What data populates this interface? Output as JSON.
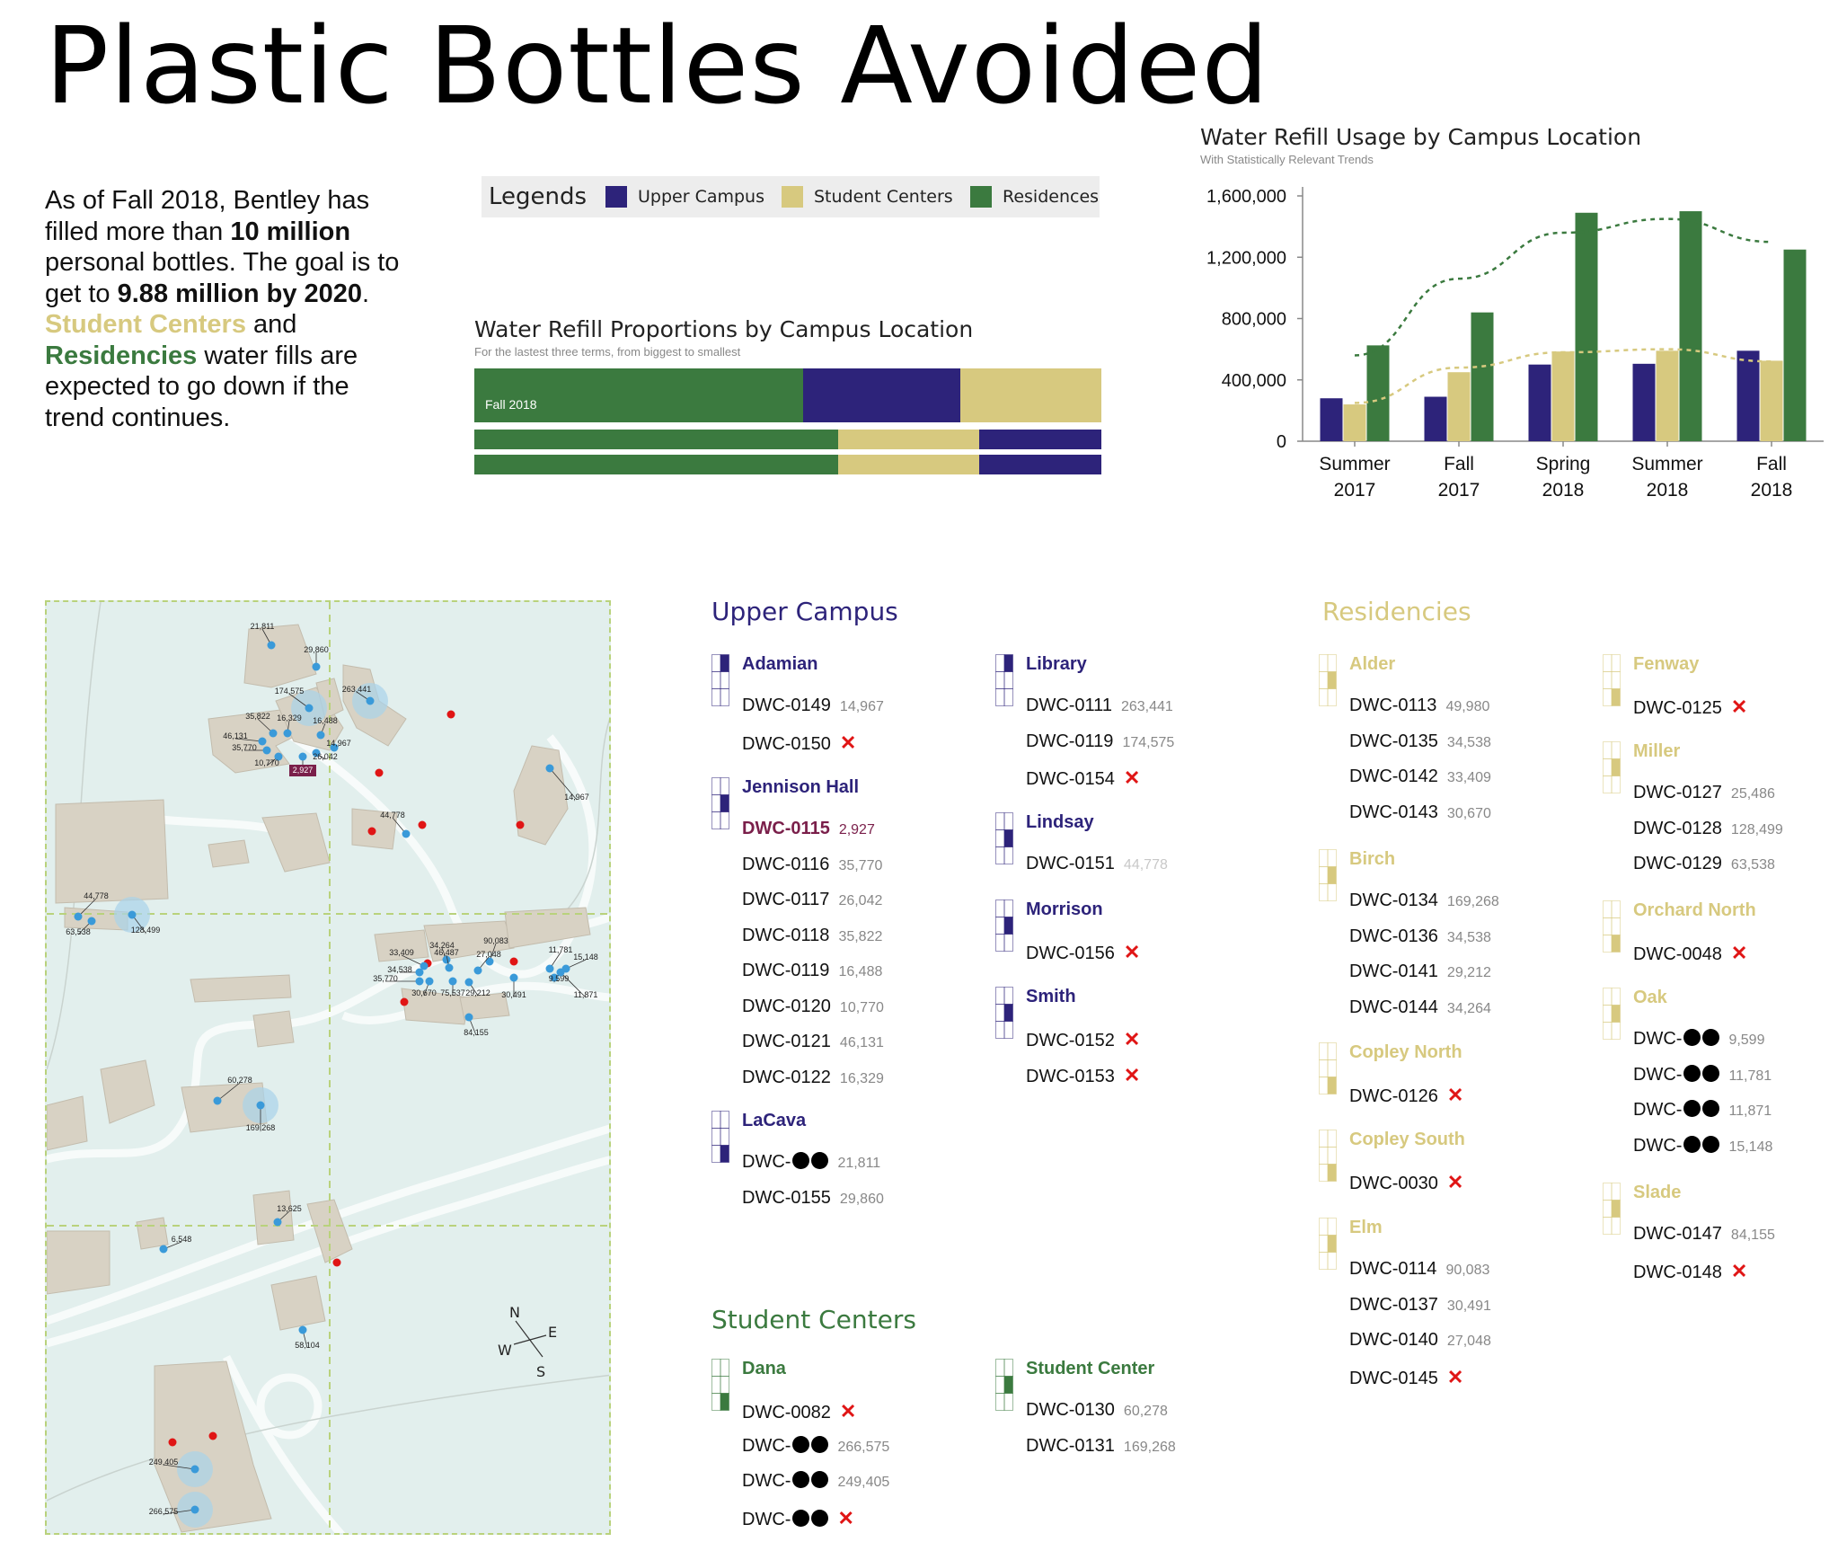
{
  "title": "Plastic Bottles Avoided",
  "intro": {
    "p1a": "As of Fall 2018, Bentley has filled more than ",
    "p1b": "10 million",
    "p1c": " personal bottles. The goal is to get to ",
    "p1d": "9.88 million by 2020",
    "p1e": ".",
    "p2a": "Student Centers",
    "p2b": " and ",
    "p2c": "Residencies",
    "p2d": " water fills are expected to go down if the trend continues."
  },
  "legend": {
    "title": "Legends",
    "items": [
      {
        "label": "Upper Campus",
        "color": "#2d237a"
      },
      {
        "label": "Student Centers",
        "color": "#d7c97f"
      },
      {
        "label": "Residences",
        "color": "#3b7a3f"
      }
    ]
  },
  "colors": {
    "upper": "#2d237a",
    "student": "#d7c97f",
    "residence": "#3b7a3f",
    "red": "#e01515",
    "highlight": "#7a1f4a"
  },
  "chart_data": [
    {
      "type": "bar",
      "title": "Water Refill Proportions by Campus Location",
      "subtitle": "For the lastest three terms, from biggest to smallest",
      "orientation": "horizontal-stacked",
      "rows": [
        {
          "label": "Fall 2018",
          "segments": [
            {
              "series": "Residences",
              "value": 52.5
            },
            {
              "series": "Upper Campus",
              "value": 25.0
            },
            {
              "series": "Student Centers",
              "value": 22.5
            }
          ]
        },
        {
          "label": "",
          "segments": [
            {
              "series": "Residences",
              "value": 58.0
            },
            {
              "series": "Student Centers",
              "value": 22.5
            },
            {
              "series": "Upper Campus",
              "value": 19.5
            }
          ]
        },
        {
          "label": "",
          "segments": [
            {
              "series": "Residences",
              "value": 58.0
            },
            {
              "series": "Student Centers",
              "value": 22.5
            },
            {
              "series": "Upper Campus",
              "value": 19.5
            }
          ]
        }
      ]
    },
    {
      "type": "bar",
      "title": "Water Refill Usage by Campus Location",
      "subtitle": "With Statistically Relevant Trends",
      "categories": [
        [
          "Summer",
          "2017"
        ],
        [
          "Fall",
          "2017"
        ],
        [
          "Spring",
          "2018"
        ],
        [
          "Summer",
          "2018"
        ],
        [
          "Fall",
          "2018"
        ]
      ],
      "series": [
        {
          "name": "Upper Campus",
          "color": "#2d237a",
          "values": [
            280000,
            290000,
            500000,
            505000,
            590000
          ]
        },
        {
          "name": "Student Centers",
          "color": "#d7c97f",
          "values": [
            240000,
            450000,
            585000,
            590000,
            525000
          ]
        },
        {
          "name": "Residences",
          "color": "#3b7a3f",
          "values": [
            625000,
            840000,
            1490000,
            1500000,
            1250000
          ]
        }
      ],
      "trendlines": [
        {
          "series": "Residences",
          "values": [
            560000,
            1060000,
            1360000,
            1450000,
            1300000
          ]
        },
        {
          "series": "Student Centers",
          "values": [
            250000,
            480000,
            580000,
            600000,
            520000
          ]
        }
      ],
      "yticks": [
        "0",
        "400,000",
        "800,000",
        "1,200,000",
        "1,600,000"
      ],
      "ylim": [
        0,
        1600000
      ]
    }
  ],
  "map": {
    "points": [
      {
        "label": "21,811",
        "kind": "value"
      },
      {
        "label": "29,860",
        "kind": "value"
      },
      {
        "label": "174,575",
        "kind": "value"
      },
      {
        "label": "263,441",
        "kind": "value"
      },
      {
        "label": "35,822",
        "kind": "value"
      },
      {
        "label": "16,329",
        "kind": "value"
      },
      {
        "label": "16,488",
        "kind": "value"
      },
      {
        "label": "46,131",
        "kind": "value"
      },
      {
        "label": "14,967",
        "kind": "value"
      },
      {
        "label": "35,770",
        "kind": "value"
      },
      {
        "label": "26,042",
        "kind": "value"
      },
      {
        "label": "10,770",
        "kind": "value"
      },
      {
        "label": "2,927",
        "kind": "highlight"
      },
      {
        "label": "44,778",
        "kind": "value"
      },
      {
        "label": "14,967",
        "kind": "value"
      },
      {
        "label": "44,778",
        "kind": "value"
      },
      {
        "label": "63,538",
        "kind": "value"
      },
      {
        "label": "128,499",
        "kind": "value"
      },
      {
        "label": "90,083",
        "kind": "value"
      },
      {
        "label": "34,264",
        "kind": "value"
      },
      {
        "label": "11,781",
        "kind": "value"
      },
      {
        "label": "33,409",
        "kind": "value"
      },
      {
        "label": "46,487",
        "kind": "value"
      },
      {
        "label": "27,048",
        "kind": "value"
      },
      {
        "label": "15,148",
        "kind": "value"
      },
      {
        "label": "34,538",
        "kind": "value"
      },
      {
        "label": "35,770",
        "kind": "value"
      },
      {
        "label": "9,599",
        "kind": "value"
      },
      {
        "label": "11,871",
        "kind": "value"
      },
      {
        "label": "30,670",
        "kind": "value"
      },
      {
        "label": "75,537",
        "kind": "value"
      },
      {
        "label": "29,212",
        "kind": "value"
      },
      {
        "label": "30,491",
        "kind": "value"
      },
      {
        "label": "84,155",
        "kind": "value"
      },
      {
        "label": "60,278",
        "kind": "value"
      },
      {
        "label": "169,268",
        "kind": "value"
      },
      {
        "label": "13,625",
        "kind": "value"
      },
      {
        "label": "6,548",
        "kind": "value"
      },
      {
        "label": "58,104",
        "kind": "value"
      },
      {
        "label": "249,405",
        "kind": "value"
      },
      {
        "label": "266,575",
        "kind": "value"
      }
    ],
    "compass": {
      "n": "N",
      "e": "E",
      "s": "S",
      "w": "W"
    }
  },
  "upper_campus": {
    "title": "Upper Campus",
    "groups": [
      {
        "name": "Adamian",
        "rows": [
          {
            "id": "DWC-0149",
            "value": "14,967"
          },
          {
            "id": "DWC-0150",
            "status": "x"
          }
        ]
      },
      {
        "name": "Jennison Hall",
        "rows": [
          {
            "id": "DWC-0115",
            "value": "2,927",
            "highlight": true
          },
          {
            "id": "DWC-0116",
            "value": "35,770"
          },
          {
            "id": "DWC-0117",
            "value": "26,042"
          },
          {
            "id": "DWC-0118",
            "value": "35,822"
          },
          {
            "id": "DWC-0119",
            "value": "16,488"
          },
          {
            "id": "DWC-0120",
            "value": "10,770"
          },
          {
            "id": "DWC-0121",
            "value": "46,131"
          },
          {
            "id": "DWC-0122",
            "value": "16,329"
          }
        ]
      },
      {
        "name": "LaCava",
        "rows": [
          {
            "id": "DWC-",
            "redacted": true,
            "value": "21,811"
          },
          {
            "id": "DWC-0155",
            "value": "29,860"
          }
        ]
      },
      {
        "name": "Library",
        "rows": [
          {
            "id": "DWC-0111",
            "value": "263,441"
          },
          {
            "id": "DWC-0119",
            "value": "174,575"
          },
          {
            "id": "DWC-0154",
            "status": "x"
          }
        ]
      },
      {
        "name": "Lindsay",
        "rows": [
          {
            "id": "DWC-0151",
            "value": "44,778",
            "faint": true
          }
        ]
      },
      {
        "name": "Morrison",
        "rows": [
          {
            "id": "DWC-0156",
            "status": "x"
          }
        ]
      },
      {
        "name": "Smith",
        "rows": [
          {
            "id": "DWC-0152",
            "status": "x"
          },
          {
            "id": "DWC-0153",
            "status": "x"
          }
        ]
      }
    ]
  },
  "student_centers": {
    "title": "Student Centers",
    "groups": [
      {
        "name": "Dana",
        "rows": [
          {
            "id": "DWC-0082",
            "status": "x"
          },
          {
            "id": "DWC-",
            "redacted": true,
            "value": "266,575"
          },
          {
            "id": "DWC-",
            "redacted": true,
            "value": "249,405"
          },
          {
            "id": "DWC-",
            "redacted": true,
            "status": "x"
          }
        ]
      },
      {
        "name": "Student Center",
        "rows": [
          {
            "id": "DWC-0130",
            "value": "60,278"
          },
          {
            "id": "DWC-0131",
            "value": "169,268"
          }
        ]
      }
    ]
  },
  "residencies": {
    "title": "Residencies",
    "groups": [
      {
        "name": "Alder",
        "rows": [
          {
            "id": "DWC-0113",
            "value": "49,980"
          },
          {
            "id": "DWC-0135",
            "value": "34,538"
          },
          {
            "id": "DWC-0142",
            "value": "33,409"
          },
          {
            "id": "DWC-0143",
            "value": "30,670"
          }
        ]
      },
      {
        "name": "Birch",
        "rows": [
          {
            "id": "DWC-0134",
            "value": "169,268"
          },
          {
            "id": "DWC-0136",
            "value": "34,538"
          },
          {
            "id": "DWC-0141",
            "value": "29,212"
          },
          {
            "id": "DWC-0144",
            "value": "34,264"
          }
        ]
      },
      {
        "name": "Copley North",
        "rows": [
          {
            "id": "DWC-0126",
            "status": "x"
          }
        ]
      },
      {
        "name": "Copley South",
        "rows": [
          {
            "id": "DWC-0030",
            "status": "x"
          }
        ]
      },
      {
        "name": "Elm",
        "rows": [
          {
            "id": "DWC-0114",
            "value": "90,083"
          },
          {
            "id": "DWC-0137",
            "value": "30,491"
          },
          {
            "id": "DWC-0140",
            "value": "27,048"
          },
          {
            "id": "DWC-0145",
            "status": "x"
          }
        ]
      },
      {
        "name": "Fenway",
        "rows": [
          {
            "id": "DWC-0125",
            "status": "x"
          }
        ]
      },
      {
        "name": "Miller",
        "rows": [
          {
            "id": "DWC-0127",
            "value": "25,486"
          },
          {
            "id": "DWC-0128",
            "value": "128,499"
          },
          {
            "id": "DWC-0129",
            "value": "63,538"
          }
        ]
      },
      {
        "name": "Orchard North",
        "rows": [
          {
            "id": "DWC-0048",
            "status": "x"
          }
        ]
      },
      {
        "name": "Oak",
        "rows": [
          {
            "id": "DWC-",
            "redacted": true,
            "value": "9,599"
          },
          {
            "id": "DWC-",
            "redacted": true,
            "value": "11,781"
          },
          {
            "id": "DWC-",
            "redacted": true,
            "value": "11,871"
          },
          {
            "id": "DWC-",
            "redacted": true,
            "value": "15,148"
          }
        ]
      },
      {
        "name": "Slade",
        "rows": [
          {
            "id": "DWC-0147",
            "value": "84,155"
          },
          {
            "id": "DWC-0148",
            "status": "x"
          }
        ]
      }
    ]
  }
}
